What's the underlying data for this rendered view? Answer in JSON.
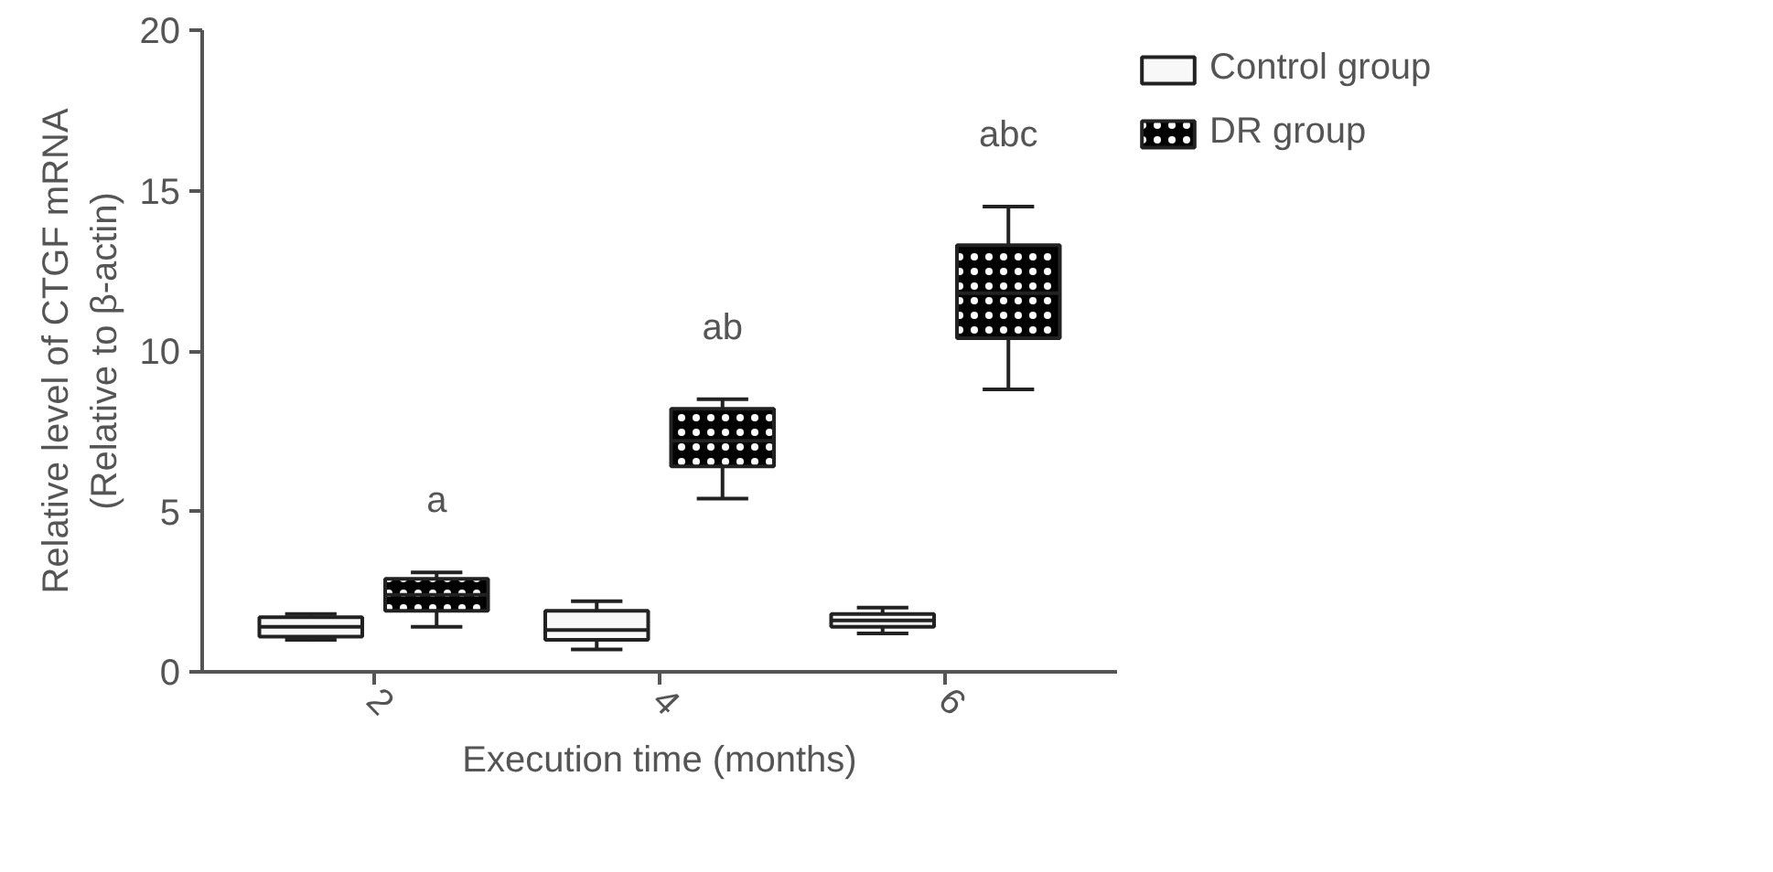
{
  "chart_data": {
    "type": "box",
    "xlabel": "Execution time (months)",
    "ylabel": "Relative level of CTGF mRNA\n(Relative to β-actin)",
    "categories": [
      "2",
      "4",
      "6"
    ],
    "ylim": [
      0,
      20
    ],
    "yticks": [
      0,
      5,
      10,
      15,
      20
    ],
    "grid": false,
    "legend": "top right",
    "series": [
      {
        "name": "Control group",
        "color": "#f8f8f8",
        "boxes": [
          {
            "low": 1.0,
            "q1": 1.1,
            "median": 1.4,
            "q3": 1.7,
            "high": 1.8
          },
          {
            "low": 0.7,
            "q1": 1.0,
            "median": 1.3,
            "q3": 1.9,
            "high": 2.2
          },
          {
            "low": 1.2,
            "q1": 1.4,
            "median": 1.6,
            "q3": 1.8,
            "high": 2.0
          }
        ]
      },
      {
        "name": "DR group",
        "color": "#000000",
        "boxes": [
          {
            "low": 1.4,
            "q1": 1.9,
            "median": 2.4,
            "q3": 2.9,
            "high": 3.1
          },
          {
            "low": 5.4,
            "q1": 6.4,
            "median": 7.2,
            "q3": 8.2,
            "high": 8.5
          },
          {
            "low": 8.8,
            "q1": 10.4,
            "median": 11.8,
            "q3": 13.3,
            "high": 14.5
          }
        ]
      }
    ],
    "annotations": [
      "a",
      "ab",
      "abc"
    ]
  }
}
